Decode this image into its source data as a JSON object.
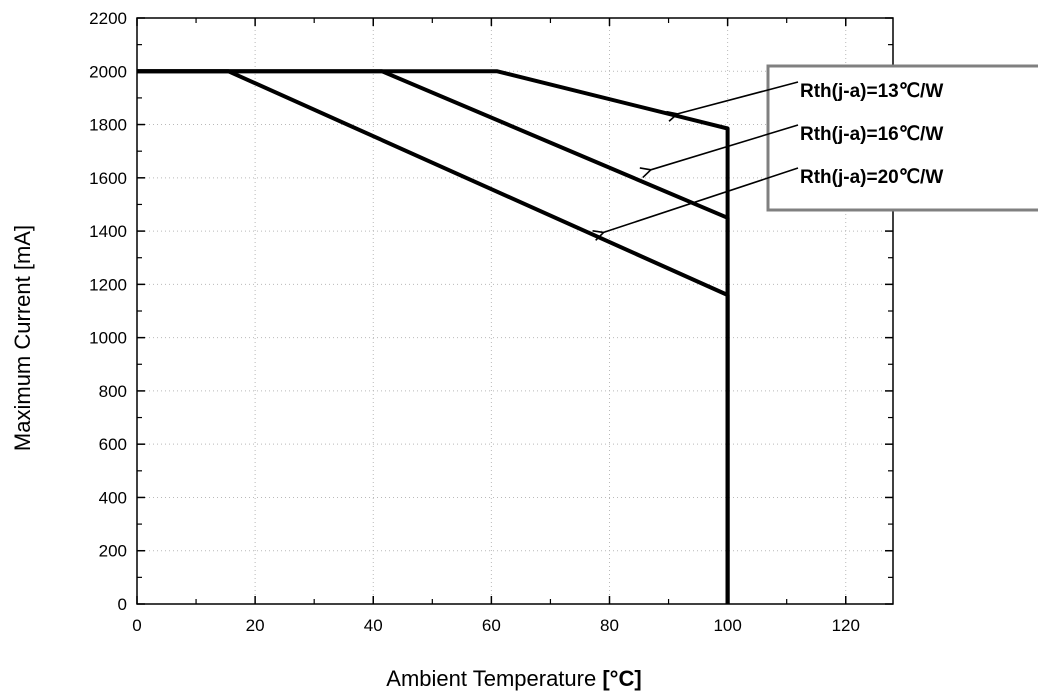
{
  "chart_data": {
    "type": "line",
    "title": "",
    "xlabel": "Ambient Temperature ",
    "xlabel_unit": "[°C]",
    "ylabel": "Maximum Current [mA]",
    "xlim": [
      0,
      128
    ],
    "ylim": [
      0,
      2200
    ],
    "x_ticks": [
      0,
      20,
      40,
      60,
      80,
      100,
      120
    ],
    "y_ticks": [
      0,
      200,
      400,
      600,
      800,
      1000,
      1200,
      1400,
      1600,
      1800,
      2000,
      2200
    ],
    "grid": true,
    "legend_placement": "top-right",
    "series": [
      {
        "name": "Rth(j-a)=13℃/W",
        "x": [
          0,
          61,
          100,
          100
        ],
        "y": [
          2000,
          2000,
          1785,
          0
        ]
      },
      {
        "name": "Rth(j-a)=16℃/W",
        "x": [
          0,
          41.5,
          100,
          100
        ],
        "y": [
          2000,
          2000,
          1450,
          0
        ]
      },
      {
        "name": "Rth(j-a)=20℃/W",
        "x": [
          0,
          15.5,
          100,
          100
        ],
        "y": [
          2000,
          2000,
          1160,
          0
        ]
      }
    ],
    "annotations": [
      {
        "series": 0,
        "target": [
          91.5,
          1840
        ]
      },
      {
        "series": 1,
        "target": [
          87,
          1630
        ]
      },
      {
        "series": 2,
        "target": [
          79,
          1395
        ]
      }
    ],
    "colors": {
      "line": "#000000",
      "legend_border": "#808080",
      "grid": "#b9b9b9"
    }
  }
}
